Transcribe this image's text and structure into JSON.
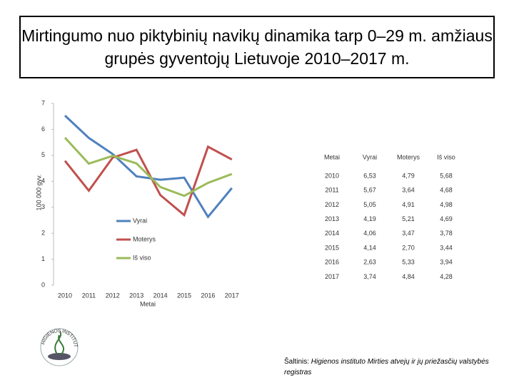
{
  "title": "Mirtingumo nuo piktybinių navikų dinamika tarp 0–29 m. amžiaus grupės gyventojų Lietuvoje 2010–2017 m.",
  "chart_data": {
    "type": "line",
    "y_label": "100 000 gyv.",
    "x_label": "Metai",
    "categories": [
      "2010",
      "2011",
      "2012",
      "2013",
      "2014",
      "2015",
      "2016",
      "2017"
    ],
    "series": [
      {
        "name": "Vyrai",
        "color": "#4f81bd",
        "values": [
          6.53,
          5.67,
          5.05,
          4.19,
          4.06,
          4.14,
          2.63,
          3.74
        ],
        "value_labels": [
          "6,53",
          "5,67",
          "5,05",
          "4,19",
          "4,06",
          "4,14",
          "2,63",
          "3,74"
        ]
      },
      {
        "name": "Moterys",
        "color": "#c0504d",
        "values": [
          4.79,
          3.64,
          4.91,
          5.21,
          3.47,
          2.7,
          5.33,
          4.84
        ],
        "value_labels": [
          "4,79",
          "3,64",
          "4,91",
          "5,21",
          "3,47",
          "2,70",
          "5,33",
          "4,84"
        ]
      },
      {
        "name": "Iš viso",
        "color": "#9bbb59",
        "values": [
          5.68,
          4.68,
          4.98,
          4.69,
          3.78,
          3.44,
          3.94,
          4.28
        ],
        "value_labels": [
          "5,68",
          "4,68",
          "4,98",
          "4,69",
          "3,78",
          "3,44",
          "3,94",
          "4,28"
        ]
      }
    ],
    "ylim": [
      0,
      7
    ],
    "yticks": [
      0,
      1,
      2,
      3,
      4,
      5,
      6,
      7
    ]
  },
  "source_label": "Šaltinis:",
  "source_text": "Higienos instituto Mirties atvejų ir jų priežasčių valstybės registras",
  "logo_text": "HIGIENOS INSTITUTAS"
}
